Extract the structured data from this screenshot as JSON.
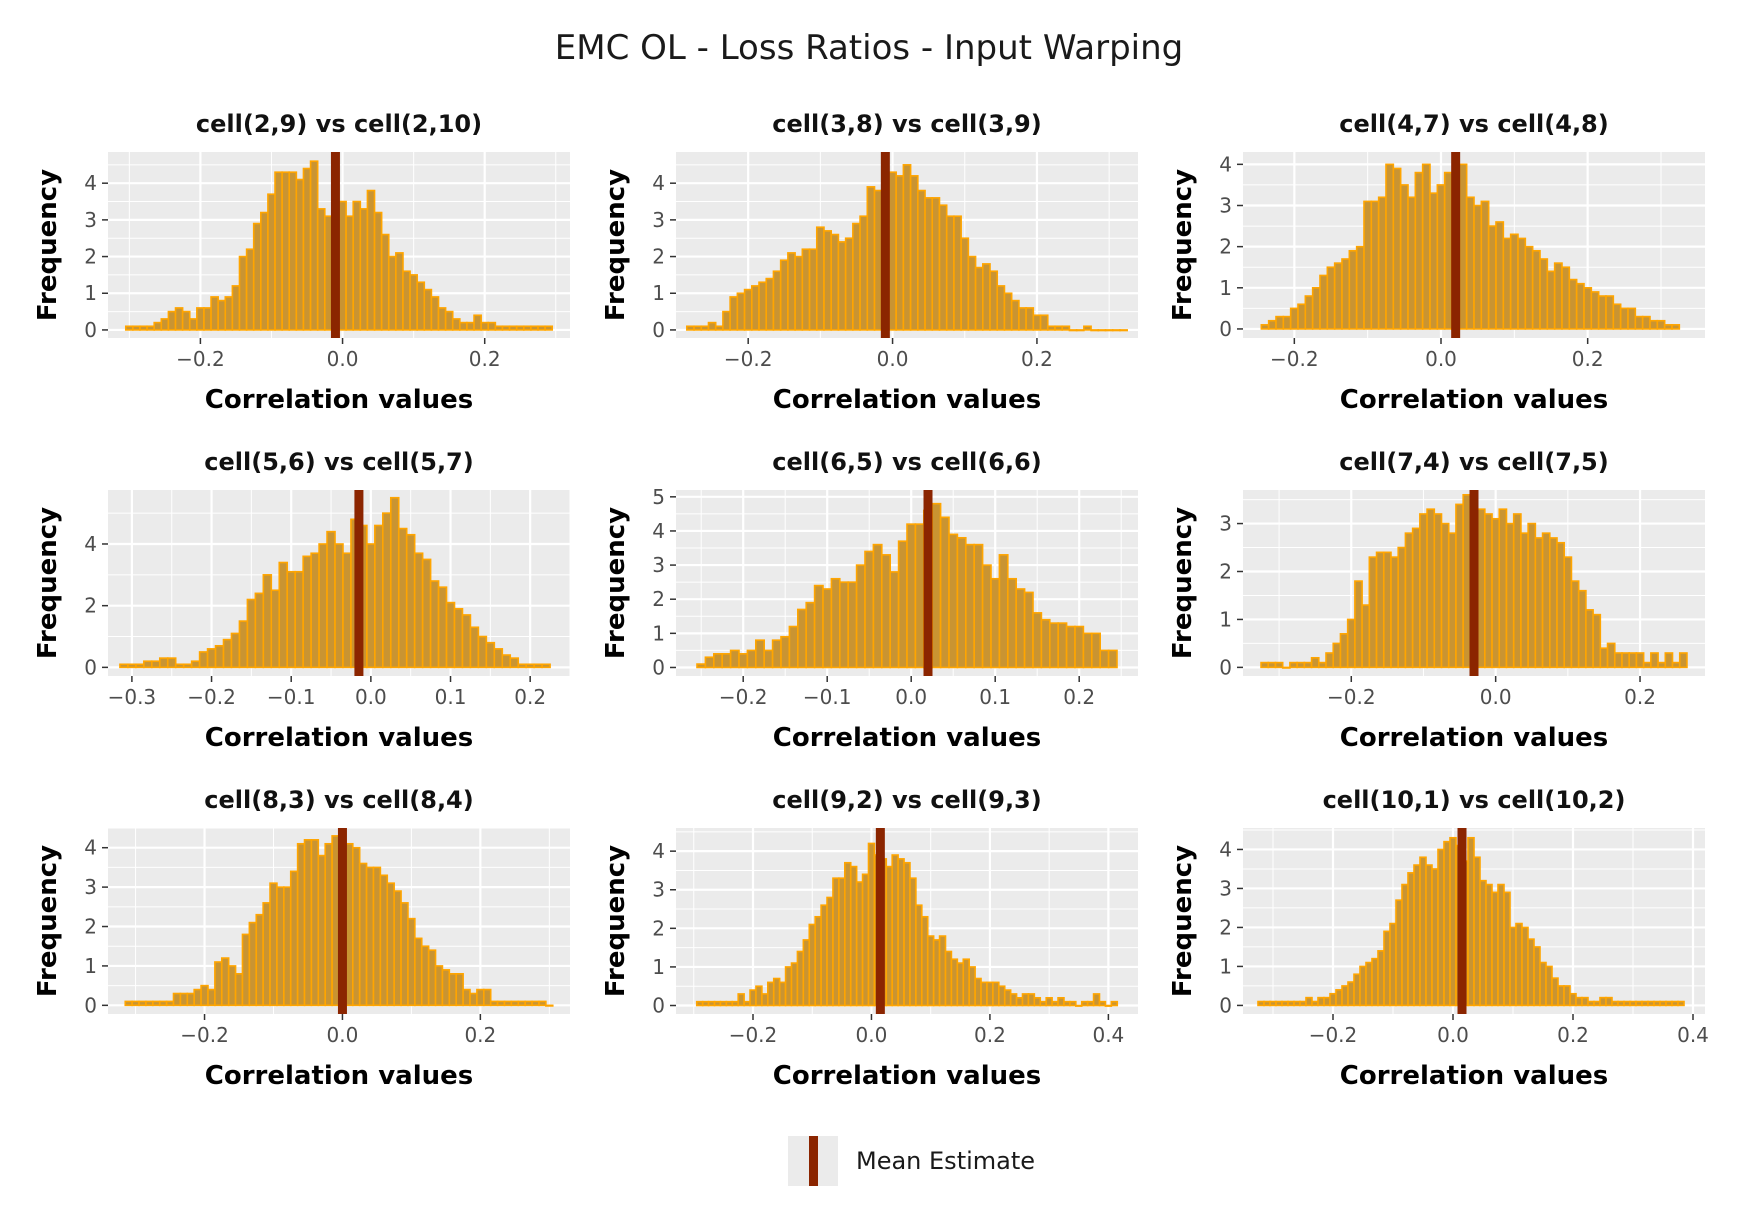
{
  "title": "EMC OL - Loss Ratios - Input Warping",
  "legend": {
    "label": "Mean Estimate"
  },
  "colors": {
    "bar_fill": "#c99432",
    "bar_outline": "#ffa500",
    "mean_line": "#8b2500",
    "panel_bg": "#ebebeb",
    "grid": "#ffffff"
  },
  "chart_data": [
    {
      "type": "bar",
      "title": "cell(2,9) vs cell(2,10)",
      "xlabel": "Correlation values",
      "ylabel": "Frequency",
      "xlim": [
        -0.33,
        0.32
      ],
      "ylim": [
        -0.22,
        4.85
      ],
      "xticks": [
        -0.2,
        0.0,
        0.2
      ],
      "yticks": [
        0,
        1,
        2,
        3,
        4
      ],
      "mean": -0.01,
      "x": [
        -0.3,
        -0.29,
        -0.28,
        -0.27,
        -0.26,
        -0.25,
        -0.24,
        -0.23,
        -0.22,
        -0.21,
        -0.2,
        -0.19,
        -0.18,
        -0.17,
        -0.16,
        -0.15,
        -0.14,
        -0.13,
        -0.12,
        -0.11,
        -0.1,
        -0.09,
        -0.08,
        -0.07,
        -0.06,
        -0.05,
        -0.04,
        -0.03,
        -0.02,
        -0.01,
        0.0,
        0.01,
        0.02,
        0.03,
        0.04,
        0.05,
        0.06,
        0.07,
        0.08,
        0.09,
        0.1,
        0.11,
        0.12,
        0.13,
        0.14,
        0.15,
        0.16,
        0.17,
        0.18,
        0.19,
        0.2,
        0.21,
        0.22,
        0.23,
        0.24,
        0.25,
        0.26,
        0.27,
        0.28,
        0.29
      ],
      "values": [
        0.1,
        0.1,
        0.1,
        0.1,
        0.2,
        0.3,
        0.5,
        0.6,
        0.5,
        0.3,
        0.6,
        0.6,
        0.9,
        0.8,
        0.9,
        1.2,
        2.0,
        2.2,
        2.9,
        3.2,
        3.7,
        4.3,
        4.3,
        4.3,
        4.1,
        4.4,
        4.6,
        3.3,
        3.1,
        3.0,
        3.5,
        3.1,
        3.5,
        3.3,
        3.8,
        3.2,
        2.6,
        2.0,
        2.1,
        1.6,
        1.5,
        1.3,
        1.1,
        0.9,
        0.6,
        0.5,
        0.3,
        0.2,
        0.2,
        0.4,
        0.2,
        0.2,
        0.1,
        0.1,
        0.1,
        0.1,
        0.1,
        0.1,
        0.1,
        0.1
      ]
    },
    {
      "type": "bar",
      "title": "cell(3,8) vs cell(3,9)",
      "xlabel": "Correlation values",
      "ylabel": "Frequency",
      "xlim": [
        -0.3,
        0.34
      ],
      "ylim": [
        -0.22,
        4.85
      ],
      "xticks": [
        -0.2,
        0.0,
        0.2
      ],
      "yticks": [
        0,
        1,
        2,
        3,
        4
      ],
      "mean": -0.01,
      "x": [
        -0.28,
        -0.27,
        -0.26,
        -0.25,
        -0.24,
        -0.23,
        -0.22,
        -0.21,
        -0.2,
        -0.19,
        -0.18,
        -0.17,
        -0.16,
        -0.15,
        -0.14,
        -0.13,
        -0.12,
        -0.11,
        -0.1,
        -0.09,
        -0.08,
        -0.07,
        -0.06,
        -0.05,
        -0.04,
        -0.03,
        -0.02,
        -0.01,
        0.0,
        0.01,
        0.02,
        0.03,
        0.04,
        0.05,
        0.06,
        0.07,
        0.08,
        0.09,
        0.1,
        0.11,
        0.12,
        0.13,
        0.14,
        0.15,
        0.16,
        0.17,
        0.18,
        0.19,
        0.2,
        0.21,
        0.22,
        0.23,
        0.24,
        0.25,
        0.26,
        0.27,
        0.28,
        0.29,
        0.3,
        0.31,
        0.32
      ],
      "values": [
        0.1,
        0.1,
        0.1,
        0.2,
        0.1,
        0.5,
        0.9,
        1.0,
        1.1,
        1.2,
        1.3,
        1.4,
        1.6,
        1.9,
        2.1,
        2.0,
        2.2,
        2.2,
        2.8,
        2.7,
        2.6,
        2.4,
        2.5,
        2.9,
        3.1,
        3.9,
        3.8,
        3.4,
        4.3,
        4.2,
        4.5,
        4.2,
        3.8,
        3.6,
        3.6,
        3.4,
        3.1,
        3.1,
        2.5,
        2.0,
        1.7,
        1.8,
        1.6,
        1.2,
        1.0,
        0.8,
        0.6,
        0.6,
        0.4,
        0.4,
        0.1,
        0.1,
        0.1,
        0.0,
        0.0,
        0.1,
        0.0,
        0.0,
        0.0,
        0.0,
        0.0
      ]
    },
    {
      "type": "bar",
      "title": "cell(4,7) vs cell(4,8)",
      "xlabel": "Correlation values",
      "ylabel": "Frequency",
      "xlim": [
        -0.27,
        0.36
      ],
      "ylim": [
        -0.22,
        4.3
      ],
      "xticks": [
        -0.2,
        0.0,
        0.2
      ],
      "yticks": [
        0,
        1,
        2,
        3,
        4
      ],
      "mean": 0.02,
      "x": [
        -0.24,
        -0.23,
        -0.22,
        -0.21,
        -0.2,
        -0.19,
        -0.18,
        -0.17,
        -0.16,
        -0.15,
        -0.14,
        -0.13,
        -0.12,
        -0.11,
        -0.1,
        -0.09,
        -0.08,
        -0.07,
        -0.06,
        -0.05,
        -0.04,
        -0.03,
        -0.02,
        -0.01,
        0.0,
        0.01,
        0.02,
        0.03,
        0.04,
        0.05,
        0.06,
        0.07,
        0.08,
        0.09,
        0.1,
        0.11,
        0.12,
        0.13,
        0.14,
        0.15,
        0.16,
        0.17,
        0.18,
        0.19,
        0.2,
        0.21,
        0.22,
        0.23,
        0.24,
        0.25,
        0.26,
        0.27,
        0.28,
        0.29,
        0.3,
        0.31,
        0.32
      ],
      "values": [
        0.1,
        0.2,
        0.3,
        0.3,
        0.5,
        0.6,
        0.8,
        1.0,
        1.3,
        1.5,
        1.6,
        1.7,
        1.9,
        2.0,
        3.1,
        3.1,
        3.2,
        4.0,
        3.9,
        3.5,
        3.2,
        3.8,
        4.0,
        3.3,
        3.5,
        3.8,
        3.6,
        4.0,
        3.2,
        3.0,
        3.1,
        2.5,
        2.6,
        2.2,
        2.3,
        2.2,
        2.0,
        1.9,
        1.7,
        1.4,
        1.6,
        1.5,
        1.2,
        1.1,
        1.0,
        0.9,
        0.8,
        0.8,
        0.6,
        0.5,
        0.5,
        0.3,
        0.3,
        0.2,
        0.2,
        0.1,
        0.1
      ]
    },
    {
      "type": "bar",
      "title": "cell(5,6) vs cell(5,7)",
      "xlabel": "Correlation values",
      "ylabel": "Frequency",
      "xlim": [
        -0.33,
        0.25
      ],
      "ylim": [
        -0.28,
        5.75
      ],
      "xticks": [
        -0.3,
        -0.2,
        -0.1,
        0.0,
        0.1,
        0.2
      ],
      "yticks": [
        0,
        2,
        4
      ],
      "mean": -0.015,
      "x": [
        -0.31,
        -0.3,
        -0.29,
        -0.28,
        -0.27,
        -0.26,
        -0.25,
        -0.24,
        -0.23,
        -0.22,
        -0.21,
        -0.2,
        -0.19,
        -0.18,
        -0.17,
        -0.16,
        -0.15,
        -0.14,
        -0.13,
        -0.12,
        -0.11,
        -0.1,
        -0.09,
        -0.08,
        -0.07,
        -0.06,
        -0.05,
        -0.04,
        -0.03,
        -0.02,
        -0.01,
        0.0,
        0.01,
        0.02,
        0.03,
        0.04,
        0.05,
        0.06,
        0.07,
        0.08,
        0.09,
        0.1,
        0.11,
        0.12,
        0.13,
        0.14,
        0.15,
        0.16,
        0.17,
        0.18,
        0.19,
        0.2,
        0.21,
        0.22
      ],
      "values": [
        0.1,
        0.1,
        0.1,
        0.2,
        0.2,
        0.3,
        0.3,
        0.1,
        0.1,
        0.2,
        0.5,
        0.6,
        0.7,
        0.9,
        1.1,
        1.5,
        2.2,
        2.4,
        3.0,
        2.5,
        3.4,
        3.1,
        3.1,
        3.6,
        3.7,
        4.0,
        4.4,
        4.0,
        3.7,
        4.8,
        4.6,
        4.0,
        4.6,
        5.0,
        5.5,
        4.5,
        4.3,
        3.7,
        3.5,
        2.8,
        2.6,
        2.1,
        1.9,
        1.7,
        1.3,
        1.0,
        0.8,
        0.6,
        0.4,
        0.3,
        0.1,
        0.1,
        0.1,
        0.1
      ]
    },
    {
      "type": "bar",
      "title": "cell(6,5) vs cell(6,6)",
      "xlabel": "Correlation values",
      "ylabel": "Frequency",
      "xlim": [
        -0.28,
        0.27
      ],
      "ylim": [
        -0.25,
        5.2
      ],
      "xticks": [
        -0.2,
        -0.1,
        0.0,
        0.1,
        0.2
      ],
      "yticks": [
        0,
        1,
        2,
        3,
        4,
        5
      ],
      "mean": 0.02,
      "x": [
        -0.25,
        -0.24,
        -0.23,
        -0.22,
        -0.21,
        -0.2,
        -0.19,
        -0.18,
        -0.17,
        -0.16,
        -0.15,
        -0.14,
        -0.13,
        -0.12,
        -0.11,
        -0.1,
        -0.09,
        -0.08,
        -0.07,
        -0.06,
        -0.05,
        -0.04,
        -0.03,
        -0.02,
        -0.01,
        0.0,
        0.01,
        0.02,
        0.03,
        0.04,
        0.05,
        0.06,
        0.07,
        0.08,
        0.09,
        0.1,
        0.11,
        0.12,
        0.13,
        0.14,
        0.15,
        0.16,
        0.17,
        0.18,
        0.19,
        0.2,
        0.21,
        0.22,
        0.23,
        0.24
      ],
      "values": [
        0.1,
        0.3,
        0.4,
        0.4,
        0.5,
        0.4,
        0.5,
        0.8,
        0.5,
        0.8,
        0.9,
        1.2,
        1.7,
        1.9,
        2.4,
        2.3,
        2.6,
        2.5,
        2.5,
        3.0,
        3.4,
        3.6,
        3.3,
        2.8,
        3.7,
        4.2,
        4.2,
        4.6,
        4.8,
        4.4,
        3.9,
        3.8,
        3.6,
        3.6,
        3.0,
        2.6,
        3.3,
        2.6,
        2.3,
        2.2,
        1.6,
        1.4,
        1.3,
        1.3,
        1.2,
        1.2,
        1.0,
        1.0,
        0.5,
        0.5
      ]
    },
    {
      "type": "bar",
      "title": "cell(7,4) vs cell(7,5)",
      "xlabel": "Correlation values",
      "ylabel": "Frequency",
      "xlim": [
        -0.35,
        0.29
      ],
      "ylim": [
        -0.18,
        3.7
      ],
      "xticks": [
        -0.2,
        0.0,
        0.2
      ],
      "yticks": [
        0,
        1,
        2,
        3
      ],
      "mean": -0.03,
      "x": [
        -0.32,
        -0.31,
        -0.3,
        -0.29,
        -0.28,
        -0.27,
        -0.26,
        -0.25,
        -0.24,
        -0.23,
        -0.22,
        -0.21,
        -0.2,
        -0.19,
        -0.18,
        -0.17,
        -0.16,
        -0.15,
        -0.14,
        -0.13,
        -0.12,
        -0.11,
        -0.1,
        -0.09,
        -0.08,
        -0.07,
        -0.06,
        -0.05,
        -0.04,
        -0.03,
        -0.02,
        -0.01,
        0.0,
        0.01,
        0.02,
        0.03,
        0.04,
        0.05,
        0.06,
        0.07,
        0.08,
        0.09,
        0.1,
        0.11,
        0.12,
        0.13,
        0.14,
        0.15,
        0.16,
        0.17,
        0.18,
        0.19,
        0.2,
        0.21,
        0.22,
        0.23,
        0.24,
        0.25,
        0.26
      ],
      "values": [
        0.1,
        0.1,
        0.1,
        0.0,
        0.1,
        0.1,
        0.1,
        0.2,
        0.1,
        0.3,
        0.5,
        0.7,
        1.0,
        1.8,
        1.3,
        2.3,
        2.4,
        2.4,
        2.3,
        2.5,
        2.8,
        2.9,
        3.2,
        3.3,
        3.2,
        3.0,
        2.8,
        3.4,
        3.6,
        3.4,
        3.3,
        3.2,
        3.1,
        3.3,
        3.0,
        3.2,
        2.8,
        3.0,
        2.7,
        2.8,
        2.7,
        2.6,
        2.3,
        1.8,
        1.6,
        1.2,
        1.1,
        0.4,
        0.5,
        0.3,
        0.3,
        0.3,
        0.3,
        0.1,
        0.3,
        0.1,
        0.3,
        0.1,
        0.3
      ]
    },
    {
      "type": "bar",
      "title": "cell(8,3) vs cell(8,4)",
      "xlabel": "Correlation values",
      "ylabel": "Frequency",
      "xlim": [
        -0.34,
        0.33
      ],
      "ylim": [
        -0.22,
        4.5
      ],
      "xticks": [
        -0.2,
        0.0,
        0.2
      ],
      "yticks": [
        0,
        1,
        2,
        3,
        4
      ],
      "mean": 0.0,
      "x": [
        -0.31,
        -0.3,
        -0.29,
        -0.28,
        -0.27,
        -0.26,
        -0.25,
        -0.24,
        -0.23,
        -0.22,
        -0.21,
        -0.2,
        -0.19,
        -0.18,
        -0.17,
        -0.16,
        -0.15,
        -0.14,
        -0.13,
        -0.12,
        -0.11,
        -0.1,
        -0.09,
        -0.08,
        -0.07,
        -0.06,
        -0.05,
        -0.04,
        -0.03,
        -0.02,
        -0.01,
        0.0,
        0.01,
        0.02,
        0.03,
        0.04,
        0.05,
        0.06,
        0.07,
        0.08,
        0.09,
        0.1,
        0.11,
        0.12,
        0.13,
        0.14,
        0.15,
        0.16,
        0.17,
        0.18,
        0.19,
        0.2,
        0.21,
        0.22,
        0.23,
        0.24,
        0.25,
        0.26,
        0.27,
        0.28,
        0.29,
        0.3
      ],
      "values": [
        0.1,
        0.1,
        0.1,
        0.1,
        0.1,
        0.1,
        0.1,
        0.3,
        0.3,
        0.3,
        0.4,
        0.5,
        0.4,
        1.1,
        1.2,
        1.0,
        0.8,
        1.8,
        2.1,
        2.3,
        2.6,
        3.1,
        3.0,
        3.0,
        3.4,
        4.1,
        4.2,
        4.2,
        3.8,
        4.1,
        4.3,
        4.4,
        4.1,
        4.0,
        3.6,
        3.5,
        3.5,
        3.3,
        3.1,
        2.9,
        2.6,
        2.2,
        1.7,
        1.5,
        1.4,
        1.0,
        0.9,
        0.8,
        0.8,
        0.4,
        0.3,
        0.4,
        0.4,
        0.1,
        0.1,
        0.1,
        0.1,
        0.1,
        0.1,
        0.1,
        0.1,
        0.0
      ]
    },
    {
      "type": "bar",
      "title": "cell(9,2) vs cell(9,3)",
      "xlabel": "Correlation values",
      "ylabel": "Frequency",
      "xlim": [
        -0.33,
        0.45
      ],
      "ylim": [
        -0.22,
        4.6
      ],
      "xticks": [
        -0.2,
        0.0,
        0.2,
        0.4
      ],
      "yticks": [
        0,
        1,
        2,
        3,
        4
      ],
      "mean": 0.015,
      "x": [
        -0.29,
        -0.28,
        -0.27,
        -0.26,
        -0.25,
        -0.24,
        -0.23,
        -0.22,
        -0.21,
        -0.2,
        -0.19,
        -0.18,
        -0.17,
        -0.16,
        -0.15,
        -0.14,
        -0.13,
        -0.12,
        -0.11,
        -0.1,
        -0.09,
        -0.08,
        -0.07,
        -0.06,
        -0.05,
        -0.04,
        -0.03,
        -0.02,
        -0.01,
        0.0,
        0.01,
        0.02,
        0.03,
        0.04,
        0.05,
        0.06,
        0.07,
        0.08,
        0.09,
        0.1,
        0.11,
        0.12,
        0.13,
        0.14,
        0.15,
        0.16,
        0.17,
        0.18,
        0.19,
        0.2,
        0.21,
        0.22,
        0.23,
        0.24,
        0.25,
        0.26,
        0.27,
        0.28,
        0.29,
        0.3,
        0.31,
        0.32,
        0.33,
        0.34,
        0.35,
        0.36,
        0.37,
        0.38,
        0.39,
        0.4,
        0.41
      ],
      "values": [
        0.1,
        0.1,
        0.1,
        0.1,
        0.1,
        0.1,
        0.1,
        0.3,
        0.1,
        0.4,
        0.5,
        0.3,
        0.6,
        0.7,
        0.6,
        1.0,
        1.1,
        1.4,
        1.7,
        2.1,
        2.3,
        2.6,
        2.8,
        3.3,
        3.3,
        3.7,
        3.6,
        3.2,
        3.4,
        4.2,
        3.9,
        3.8,
        3.6,
        3.9,
        3.8,
        3.7,
        3.3,
        2.6,
        2.3,
        1.8,
        1.7,
        1.8,
        1.4,
        1.2,
        1.1,
        1.2,
        1.0,
        0.7,
        0.6,
        0.6,
        0.6,
        0.5,
        0.4,
        0.3,
        0.2,
        0.3,
        0.3,
        0.2,
        0.1,
        0.2,
        0.1,
        0.2,
        0.1,
        0.1,
        0.0,
        0.1,
        0.1,
        0.3,
        0.1,
        0.0,
        0.1
      ]
    },
    {
      "type": "bar",
      "title": "cell(10,1) vs cell(10,2)",
      "xlabel": "Correlation values",
      "ylabel": "Frequency",
      "xlim": [
        -0.35,
        0.42
      ],
      "ylim": [
        -0.22,
        4.55
      ],
      "xticks": [
        -0.2,
        0.0,
        0.2,
        0.4
      ],
      "yticks": [
        0,
        1,
        2,
        3,
        4
      ],
      "mean": 0.015,
      "x": [
        -0.32,
        -0.31,
        -0.3,
        -0.29,
        -0.28,
        -0.27,
        -0.26,
        -0.25,
        -0.24,
        -0.23,
        -0.22,
        -0.21,
        -0.2,
        -0.19,
        -0.18,
        -0.17,
        -0.16,
        -0.15,
        -0.14,
        -0.13,
        -0.12,
        -0.11,
        -0.1,
        -0.09,
        -0.08,
        -0.07,
        -0.06,
        -0.05,
        -0.04,
        -0.03,
        -0.02,
        -0.01,
        0.0,
        0.01,
        0.02,
        0.03,
        0.04,
        0.05,
        0.06,
        0.07,
        0.08,
        0.09,
        0.1,
        0.11,
        0.12,
        0.13,
        0.14,
        0.15,
        0.16,
        0.17,
        0.18,
        0.19,
        0.2,
        0.21,
        0.22,
        0.23,
        0.24,
        0.25,
        0.26,
        0.27,
        0.28,
        0.29,
        0.3,
        0.31,
        0.32,
        0.33,
        0.34,
        0.35,
        0.36,
        0.37,
        0.38
      ],
      "values": [
        0.1,
        0.1,
        0.1,
        0.1,
        0.1,
        0.1,
        0.1,
        0.1,
        0.2,
        0.1,
        0.2,
        0.2,
        0.3,
        0.4,
        0.5,
        0.6,
        0.8,
        1.0,
        1.1,
        1.2,
        1.4,
        1.9,
        2.1,
        2.7,
        3.1,
        3.4,
        3.6,
        3.8,
        3.6,
        3.5,
        4.0,
        4.2,
        4.3,
        4.1,
        3.7,
        4.3,
        3.8,
        3.2,
        3.1,
        2.9,
        3.1,
        2.9,
        2.0,
        2.1,
        2.0,
        1.7,
        1.5,
        1.1,
        1.0,
        0.7,
        0.5,
        0.5,
        0.3,
        0.2,
        0.2,
        0.1,
        0.1,
        0.2,
        0.2,
        0.1,
        0.1,
        0.1,
        0.1,
        0.1,
        0.1,
        0.1,
        0.1,
        0.1,
        0.1,
        0.1,
        0.1
      ]
    }
  ]
}
